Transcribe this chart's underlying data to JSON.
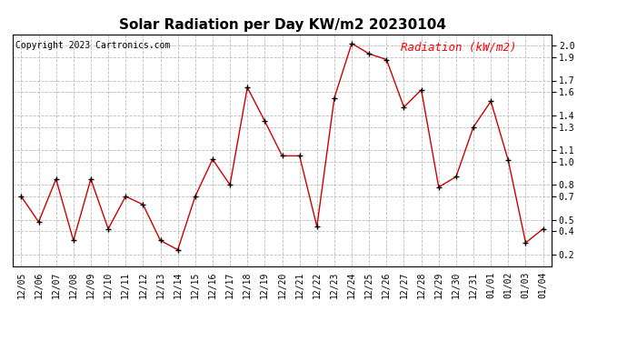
{
  "title": "Solar Radiation per Day KW/m2 20230104",
  "copyright": "Copyright 2023 Cartronics.com",
  "legend_label": "Radiation (kW/m2)",
  "labels": [
    "12/05",
    "12/06",
    "12/07",
    "12/08",
    "12/09",
    "12/10",
    "12/11",
    "12/12",
    "12/13",
    "12/14",
    "12/15",
    "12/16",
    "12/17",
    "12/18",
    "12/19",
    "12/20",
    "12/21",
    "12/22",
    "12/23",
    "12/24",
    "12/25",
    "12/26",
    "12/27",
    "12/28",
    "12/29",
    "12/30",
    "12/31",
    "01/01",
    "01/02",
    "01/03",
    "01/04"
  ],
  "values": [
    0.7,
    0.48,
    0.85,
    0.32,
    0.85,
    0.42,
    0.7,
    0.63,
    0.32,
    0.24,
    0.7,
    1.02,
    0.8,
    1.64,
    1.35,
    1.05,
    1.05,
    0.44,
    1.55,
    2.02,
    1.93,
    1.88,
    1.47,
    1.62,
    0.78,
    0.87,
    1.3,
    1.52,
    1.01,
    0.3,
    0.42
  ],
  "ylim": [
    0.1,
    2.1
  ],
  "ytick_vals": [
    0.2,
    0.4,
    0.5,
    0.7,
    0.8,
    1.0,
    1.1,
    1.3,
    1.4,
    1.6,
    1.7,
    1.9,
    2.0
  ],
  "ytick_labels": [
    "0.2",
    "0.4",
    "0.5",
    "0.7",
    "0.8",
    "1.0",
    "1.1",
    "1.3",
    "1.4",
    "1.6",
    "1.7",
    "1.9",
    "2.0"
  ],
  "line_color": "#cc0000",
  "marker_color": "#000000",
  "bg_color": "#ffffff",
  "grid_color": "#bbbbbb",
  "title_fontsize": 11,
  "copyright_fontsize": 7,
  "legend_fontsize": 9,
  "tick_fontsize": 7
}
